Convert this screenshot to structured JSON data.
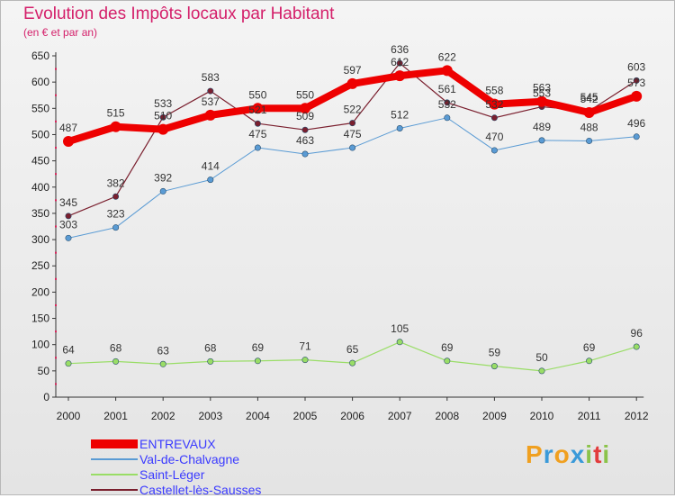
{
  "title": "Evolution des Impôts locaux par Habitant",
  "subtitle": "(en € et par an)",
  "logo": {
    "letters": [
      "P",
      "r",
      "o",
      "x",
      "i",
      "t",
      "i"
    ],
    "colors": [
      "#f0a020",
      "#3a9ad9",
      "#f0a020",
      "#3a9ad9",
      "#8bc34a",
      "#e23c3c",
      "#8bc34a"
    ]
  },
  "chart_data": {
    "type": "line",
    "title": "Evolution des Impôts locaux par Habitant",
    "subtitle": "(en € et par an)",
    "xlabel": "",
    "ylabel": "",
    "ylim": [
      0,
      650
    ],
    "y_ticks": [
      0,
      50,
      100,
      150,
      200,
      250,
      300,
      350,
      400,
      450,
      500,
      550,
      600,
      650
    ],
    "grid": false,
    "legend_position": "bottom-left",
    "categories": [
      "2000",
      "2001",
      "2002",
      "2003",
      "2004",
      "2005",
      "2006",
      "2007",
      "2008",
      "2009",
      "2010",
      "2011",
      "2012"
    ],
    "series": [
      {
        "name": "ENTREVAUX",
        "color": "#ee0000",
        "values": [
          487,
          515,
          510,
          537,
          550,
          550,
          597,
          612,
          622,
          558,
          563,
          542,
          573
        ],
        "labels": [
          "487",
          "515",
          "510",
          "537",
          "550",
          "550",
          "597",
          "612",
          "622",
          "558",
          "563",
          "542",
          "573"
        ]
      },
      {
        "name": "Val-de-Chalvagne",
        "color": "#5a9bd4",
        "values": [
          303,
          323,
          392,
          414,
          475,
          463,
          475,
          512,
          532,
          470,
          489,
          488,
          496
        ],
        "labels": [
          "303",
          "323",
          "392",
          "414",
          "475",
          "463",
          "475",
          "512",
          "532",
          "470",
          "489",
          "488",
          "496"
        ]
      },
      {
        "name": "Saint-Léger",
        "color": "#99dd66",
        "values": [
          64,
          68,
          63,
          68,
          69,
          71,
          65,
          105,
          69,
          59,
          50,
          69,
          96
        ],
        "labels": [
          "64",
          "68",
          "63",
          "68",
          "69",
          "71",
          "65",
          "105",
          "69",
          "59",
          "50",
          "69",
          "96"
        ]
      },
      {
        "name": "Castellet-lès-Sausses",
        "color": "#7a1f2e",
        "values": [
          345,
          382,
          533,
          583,
          521,
          509,
          522,
          636,
          561,
          532,
          553,
          545,
          603
        ],
        "labels": [
          "345",
          "382",
          "533",
          "583",
          "521",
          "509",
          "522",
          "636",
          "561",
          "532",
          "553",
          "545",
          "603"
        ]
      }
    ]
  }
}
